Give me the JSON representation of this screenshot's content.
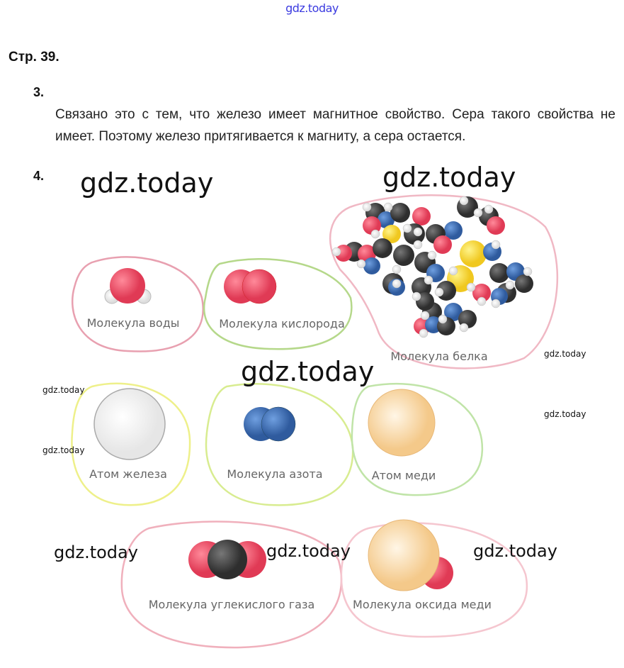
{
  "watermark_top": "gdz.today",
  "page_title": "Стр. 39.",
  "tasks": [
    {
      "number": "3.",
      "text": "Связано это с тем, что железо имеет магнитное свойство. Сера такого свойства не имеет. Поэтому железо притягивается к магниту, а сера остается."
    },
    {
      "number": "4."
    }
  ],
  "figure": {
    "labels": {
      "water": "Молекула воды",
      "oxygen": "Молекула кислорода",
      "protein": "Молекула белка",
      "iron": "Атом железа",
      "nitrogen": "Молекула азота",
      "copper": "Атом меди",
      "co2": "Молекула углекислого газа",
      "copper_oxide": "Молекула оксида меди"
    },
    "colors": {
      "oxygen": "#e8485f",
      "hydrogen": "#ffffff",
      "carbon": "#3f3f3f",
      "nitrogen": "#3f6fb5",
      "sulfur": "#f5dc3a",
      "copper": "#f8d9a0",
      "iron": "#f6f6f6"
    }
  },
  "watermarks": [
    "gdz.today",
    "gdz.today",
    "gdz.today",
    "gdz.today",
    "gdz.today",
    "gdz.today",
    "gdz.today",
    "gdz.today",
    "gdz.today",
    "gdz.today"
  ]
}
